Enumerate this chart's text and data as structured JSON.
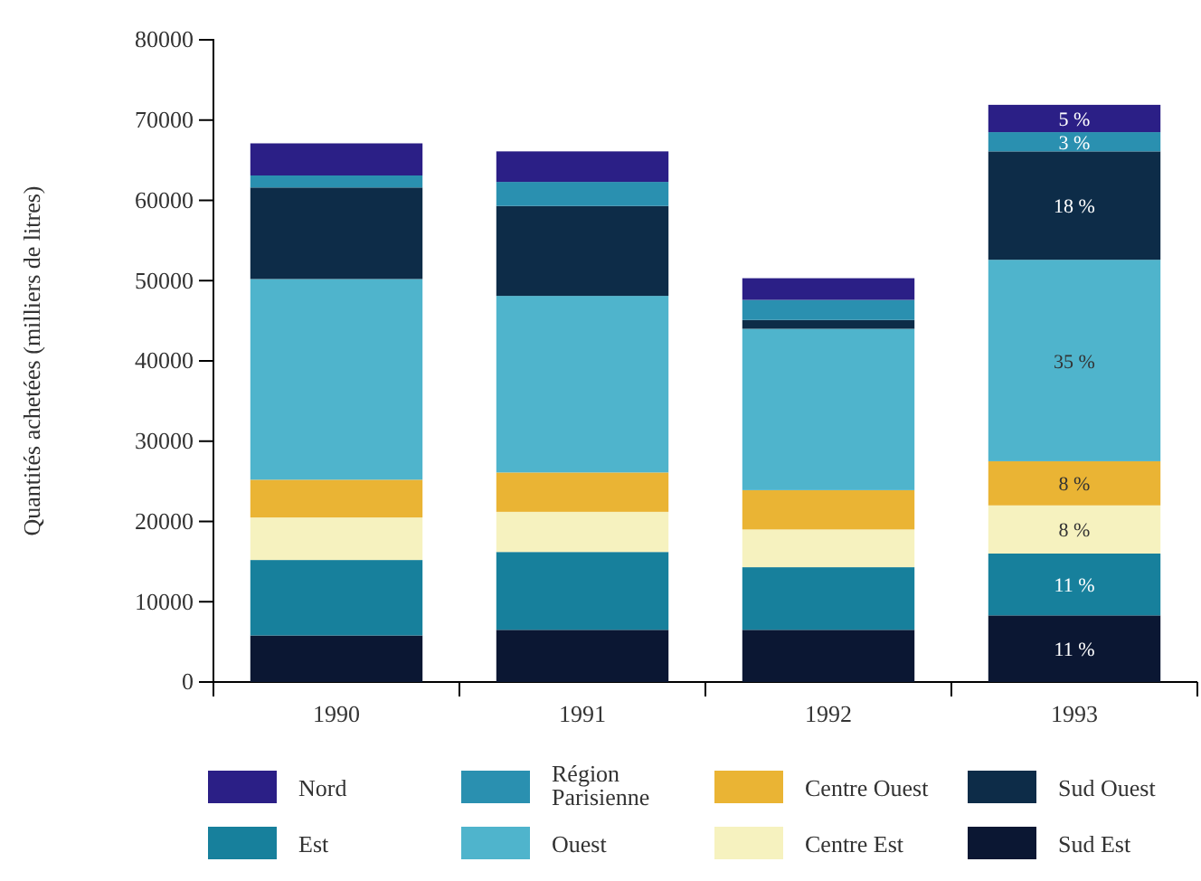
{
  "chart_data": {
    "type": "bar",
    "stacked": true,
    "ylabel": "Quantités achetées (milliers de litres)",
    "categories": [
      "1990",
      "1991",
      "1992",
      "1993"
    ],
    "ylim": [
      0,
      80000
    ],
    "yticks": [
      0,
      10000,
      20000,
      30000,
      40000,
      50000,
      60000,
      70000,
      80000
    ],
    "grid": false,
    "legend": "bottom",
    "annotations": [
      "11 %",
      "11 %",
      "8 %",
      "8 %",
      "35 %",
      "18 %",
      "3 %",
      "5 %"
    ],
    "series": [
      {
        "name": "Sud Est",
        "color": "#0b1733",
        "values": [
          5800,
          6500,
          6500,
          8300
        ]
      },
      {
        "name": "Est",
        "color": "#17809c",
        "values": [
          9400,
          9700,
          7800,
          7700
        ]
      },
      {
        "name": "Centre Est",
        "color": "#f6f2bf",
        "values": [
          5300,
          5000,
          4700,
          6000
        ]
      },
      {
        "name": "Centre Ouest",
        "color": "#eab434",
        "values": [
          4700,
          4900,
          4900,
          5500
        ]
      },
      {
        "name": "Ouest",
        "color": "#4fb4cc",
        "values": [
          25000,
          22000,
          20100,
          25100
        ]
      },
      {
        "name": "Sud Ouest",
        "color": "#0d2c48",
        "values": [
          11400,
          11200,
          1100,
          13500
        ]
      },
      {
        "name": "Région Parisienne",
        "color": "#2a90b0",
        "values": [
          1500,
          3000,
          2500,
          2400
        ]
      },
      {
        "name": "Nord",
        "color": "#2b1f86",
        "values": [
          4000,
          3800,
          2700,
          3400
        ]
      }
    ]
  }
}
